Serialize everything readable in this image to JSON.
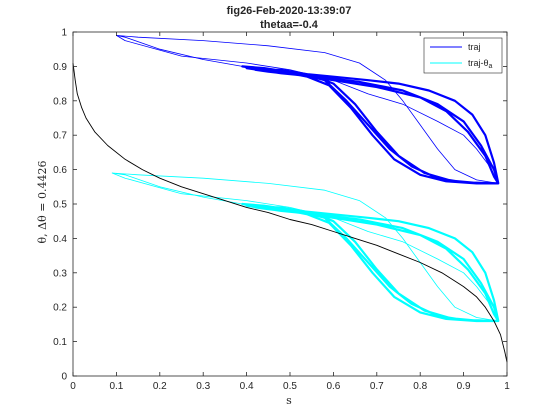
{
  "chart_data": {
    "type": "line",
    "title": "fig26-Feb-2020-13:39:07",
    "subtitle": "thetaa=-0.4",
    "xlabel": "s",
    "ylabel": "θ, Δθ = 0.4426",
    "xlim": [
      0,
      1
    ],
    "ylim": [
      0,
      1
    ],
    "xticks": [
      "0",
      "0.1",
      "0.2",
      "0.3",
      "0.4",
      "0.5",
      "0.6",
      "0.7",
      "0.8",
      "0.9",
      "1"
    ],
    "yticks": [
      "0",
      "0.1",
      "0.2",
      "0.3",
      "0.4",
      "0.5",
      "0.6",
      "0.7",
      "0.8",
      "0.9",
      "1"
    ],
    "grid": false,
    "legend_position": "top-right",
    "legend": [
      {
        "label": "traj",
        "color": "#0000ff"
      },
      {
        "label": "traj-θ",
        "subscript": "a",
        "color": "#00ffff"
      }
    ],
    "series": [
      {
        "name": "traj",
        "color": "#0000ff",
        "points": [
          [
            0.98,
            0.56
          ],
          [
            0.97,
            0.62
          ],
          [
            0.95,
            0.7
          ],
          [
            0.92,
            0.76
          ],
          [
            0.88,
            0.8
          ],
          [
            0.82,
            0.83
          ],
          [
            0.75,
            0.85
          ],
          [
            0.68,
            0.86
          ],
          [
            0.6,
            0.87
          ],
          [
            0.52,
            0.88
          ],
          [
            0.44,
            0.89
          ],
          [
            0.39,
            0.9
          ],
          [
            0.44,
            0.895
          ],
          [
            0.52,
            0.88
          ],
          [
            0.58,
            0.86
          ],
          [
            0.63,
            0.8
          ],
          [
            0.68,
            0.73
          ],
          [
            0.73,
            0.66
          ],
          [
            0.78,
            0.61
          ],
          [
            0.84,
            0.575
          ],
          [
            0.9,
            0.563
          ],
          [
            0.95,
            0.561
          ],
          [
            0.98,
            0.56
          ],
          [
            0.97,
            0.58
          ],
          [
            0.95,
            0.64
          ],
          [
            0.91,
            0.71
          ],
          [
            0.86,
            0.77
          ],
          [
            0.8,
            0.81
          ],
          [
            0.7,
            0.84
          ],
          [
            0.6,
            0.86
          ],
          [
            0.52,
            0.875
          ],
          [
            0.45,
            0.885
          ],
          [
            0.42,
            0.89
          ],
          [
            0.48,
            0.89
          ],
          [
            0.55,
            0.875
          ],
          [
            0.6,
            0.85
          ],
          [
            0.65,
            0.79
          ],
          [
            0.7,
            0.71
          ],
          [
            0.75,
            0.64
          ],
          [
            0.81,
            0.59
          ],
          [
            0.87,
            0.568
          ],
          [
            0.93,
            0.561
          ],
          [
            0.98,
            0.56
          ],
          [
            0.97,
            0.6
          ],
          [
            0.94,
            0.67
          ],
          [
            0.9,
            0.74
          ],
          [
            0.84,
            0.79
          ],
          [
            0.76,
            0.83
          ],
          [
            0.66,
            0.855
          ],
          [
            0.56,
            0.87
          ],
          [
            0.48,
            0.88
          ],
          [
            0.4,
            0.895
          ],
          [
            0.46,
            0.89
          ],
          [
            0.54,
            0.87
          ],
          [
            0.59,
            0.845
          ],
          [
            0.64,
            0.78
          ],
          [
            0.69,
            0.7
          ],
          [
            0.74,
            0.63
          ],
          [
            0.8,
            0.585
          ],
          [
            0.86,
            0.566
          ],
          [
            0.93,
            0.56
          ],
          [
            0.975,
            0.56
          ]
        ]
      },
      {
        "name": "traj-θa",
        "color": "#00ffff",
        "points": [
          [
            0.98,
            0.16
          ],
          [
            0.97,
            0.22
          ],
          [
            0.95,
            0.3
          ],
          [
            0.92,
            0.36
          ],
          [
            0.88,
            0.4
          ],
          [
            0.82,
            0.43
          ],
          [
            0.75,
            0.45
          ],
          [
            0.68,
            0.46
          ],
          [
            0.6,
            0.47
          ],
          [
            0.52,
            0.48
          ],
          [
            0.44,
            0.49
          ],
          [
            0.39,
            0.5
          ],
          [
            0.44,
            0.495
          ],
          [
            0.52,
            0.48
          ],
          [
            0.58,
            0.46
          ],
          [
            0.63,
            0.4
          ],
          [
            0.68,
            0.33
          ],
          [
            0.73,
            0.26
          ],
          [
            0.78,
            0.21
          ],
          [
            0.84,
            0.175
          ],
          [
            0.9,
            0.163
          ],
          [
            0.95,
            0.161
          ],
          [
            0.98,
            0.16
          ],
          [
            0.97,
            0.18
          ],
          [
            0.95,
            0.24
          ],
          [
            0.91,
            0.31
          ],
          [
            0.86,
            0.37
          ],
          [
            0.8,
            0.41
          ],
          [
            0.7,
            0.44
          ],
          [
            0.6,
            0.46
          ],
          [
            0.52,
            0.475
          ],
          [
            0.45,
            0.485
          ],
          [
            0.42,
            0.49
          ],
          [
            0.48,
            0.49
          ],
          [
            0.55,
            0.475
          ],
          [
            0.6,
            0.45
          ],
          [
            0.65,
            0.39
          ],
          [
            0.7,
            0.31
          ],
          [
            0.75,
            0.24
          ],
          [
            0.81,
            0.19
          ],
          [
            0.87,
            0.168
          ],
          [
            0.93,
            0.161
          ],
          [
            0.98,
            0.16
          ],
          [
            0.97,
            0.2
          ],
          [
            0.94,
            0.27
          ],
          [
            0.9,
            0.34
          ],
          [
            0.84,
            0.39
          ],
          [
            0.76,
            0.43
          ],
          [
            0.66,
            0.455
          ],
          [
            0.56,
            0.47
          ],
          [
            0.48,
            0.48
          ],
          [
            0.4,
            0.495
          ],
          [
            0.46,
            0.49
          ],
          [
            0.54,
            0.47
          ],
          [
            0.59,
            0.445
          ],
          [
            0.64,
            0.38
          ],
          [
            0.69,
            0.3
          ],
          [
            0.74,
            0.23
          ],
          [
            0.8,
            0.185
          ],
          [
            0.86,
            0.166
          ],
          [
            0.93,
            0.16
          ],
          [
            0.975,
            0.16
          ]
        ]
      },
      {
        "name": "",
        "color": "#000000",
        "points": [
          [
            0.0,
            0.91
          ],
          [
            0.005,
            0.86
          ],
          [
            0.01,
            0.82
          ],
          [
            0.02,
            0.78
          ],
          [
            0.03,
            0.75
          ],
          [
            0.05,
            0.71
          ],
          [
            0.08,
            0.67
          ],
          [
            0.12,
            0.63
          ],
          [
            0.16,
            0.6
          ],
          [
            0.2,
            0.575
          ],
          [
            0.25,
            0.55
          ],
          [
            0.3,
            0.53
          ],
          [
            0.35,
            0.51
          ],
          [
            0.4,
            0.49
          ],
          [
            0.45,
            0.475
          ],
          [
            0.5,
            0.455
          ],
          [
            0.55,
            0.44
          ],
          [
            0.6,
            0.42
          ],
          [
            0.65,
            0.4
          ],
          [
            0.7,
            0.38
          ],
          [
            0.75,
            0.355
          ],
          [
            0.8,
            0.33
          ],
          [
            0.85,
            0.3
          ],
          [
            0.9,
            0.26
          ],
          [
            0.93,
            0.23
          ],
          [
            0.95,
            0.2
          ],
          [
            0.97,
            0.16
          ],
          [
            0.985,
            0.12
          ],
          [
            0.995,
            0.07
          ],
          [
            1.0,
            0.04
          ]
        ]
      }
    ],
    "extra_traces": [
      {
        "color": "#0000ff",
        "points": [
          [
            0.39,
            0.9
          ],
          [
            0.3,
            0.92
          ],
          [
            0.2,
            0.95
          ],
          [
            0.12,
            0.985
          ],
          [
            0.1,
            0.99
          ],
          [
            0.15,
            0.985
          ],
          [
            0.3,
            0.975
          ],
          [
            0.45,
            0.96
          ],
          [
            0.58,
            0.94
          ],
          [
            0.66,
            0.91
          ],
          [
            0.72,
            0.86
          ],
          [
            0.76,
            0.8
          ],
          [
            0.8,
            0.73
          ],
          [
            0.84,
            0.66
          ],
          [
            0.88,
            0.6
          ],
          [
            0.93,
            0.57
          ],
          [
            0.98,
            0.56
          ]
        ]
      },
      {
        "color": "#0000ff",
        "points": [
          [
            0.98,
            0.56
          ],
          [
            0.96,
            0.61
          ],
          [
            0.93,
            0.66
          ],
          [
            0.9,
            0.7
          ],
          [
            0.84,
            0.74
          ],
          [
            0.76,
            0.79
          ],
          [
            0.68,
            0.82
          ],
          [
            0.6,
            0.86
          ],
          [
            0.5,
            0.89
          ],
          [
            0.4,
            0.91
          ],
          [
            0.25,
            0.93
          ],
          [
            0.12,
            0.975
          ],
          [
            0.1,
            0.99
          ]
        ]
      },
      {
        "color": "#00ffff",
        "points": [
          [
            0.39,
            0.5
          ],
          [
            0.3,
            0.52
          ],
          [
            0.2,
            0.55
          ],
          [
            0.12,
            0.585
          ],
          [
            0.09,
            0.59
          ],
          [
            0.15,
            0.585
          ],
          [
            0.3,
            0.575
          ],
          [
            0.45,
            0.56
          ],
          [
            0.58,
            0.54
          ],
          [
            0.66,
            0.51
          ],
          [
            0.72,
            0.46
          ],
          [
            0.76,
            0.4
          ],
          [
            0.8,
            0.33
          ],
          [
            0.84,
            0.26
          ],
          [
            0.88,
            0.2
          ],
          [
            0.93,
            0.17
          ],
          [
            0.98,
            0.16
          ]
        ]
      },
      {
        "color": "#00ffff",
        "points": [
          [
            0.98,
            0.16
          ],
          [
            0.96,
            0.21
          ],
          [
            0.93,
            0.26
          ],
          [
            0.9,
            0.3
          ],
          [
            0.84,
            0.34
          ],
          [
            0.76,
            0.39
          ],
          [
            0.68,
            0.42
          ],
          [
            0.6,
            0.46
          ],
          [
            0.5,
            0.49
          ],
          [
            0.4,
            0.51
          ],
          [
            0.25,
            0.53
          ],
          [
            0.12,
            0.575
          ],
          [
            0.09,
            0.59
          ]
        ]
      }
    ]
  }
}
